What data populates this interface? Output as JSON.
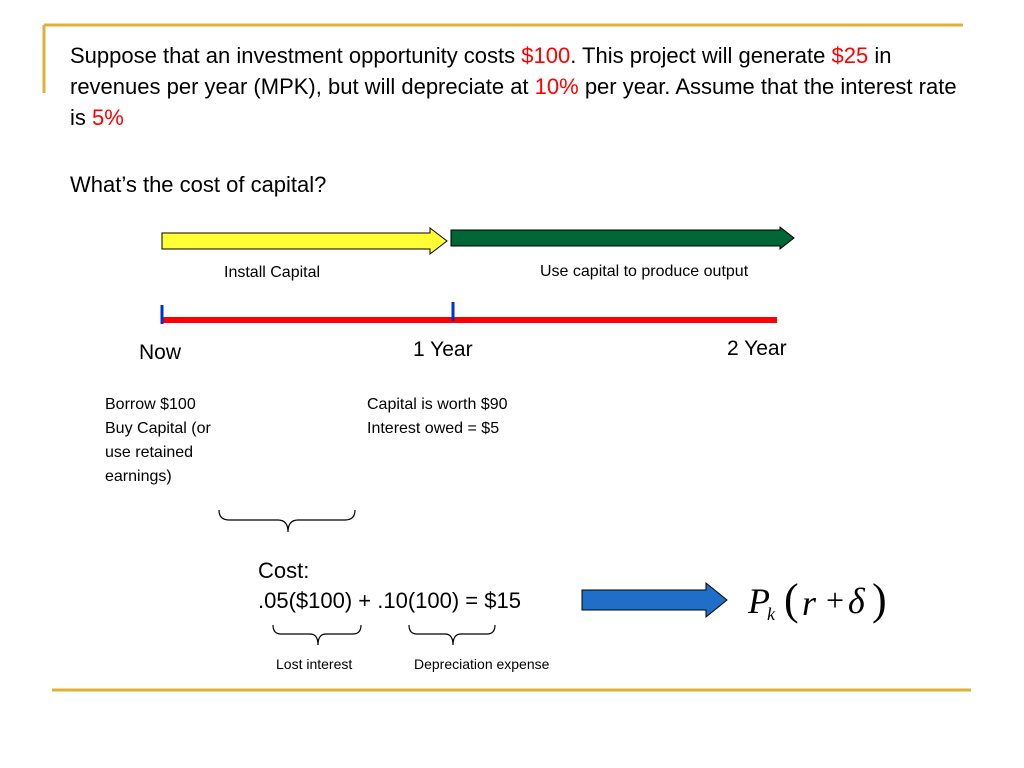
{
  "slide": {
    "intro": {
      "p1": "Suppose that an investment opportunity costs ",
      "cost": "$100",
      "p2": ".  This project will generate ",
      "revenue": "$25",
      "p3": " in revenues per year (MPK), but will depreciate at ",
      "depreciation": "10%",
      "p4": " per year. Assume that the interest rate is ",
      "interest": "5%"
    },
    "question": "What’s the cost of capital?"
  },
  "phases": {
    "install": "Install Capital",
    "use": "Use capital to produce output"
  },
  "timeline": {
    "now": "Now",
    "year1": "1 Year",
    "year2": "2 Year"
  },
  "notes": {
    "now_lines": [
      "Borrow $100",
      "Buy Capital (or",
      "use retained",
      "earnings)"
    ],
    "year1_lines": [
      "Capital is worth $90",
      "Interest owed = $5"
    ]
  },
  "cost": {
    "label": "Cost:",
    "equation": ".05($100) + .10(100) = $15",
    "lost_interest": "Lost interest",
    "depreciation_expense": "Depreciation expense"
  },
  "formula": {
    "P": "P",
    "k": "k",
    "open": "(",
    "r": "r",
    "plus": "+",
    "delta": "δ",
    "close": ")"
  },
  "colors": {
    "accent_gold": "#e0b13a",
    "install_arrow": "#ffff33",
    "use_arrow": "#006633",
    "timeline_red": "#ff0000",
    "tick_blue": "#0033cc",
    "result_arrow": "#1f6fc9",
    "highlight_red": "#ff0000"
  }
}
